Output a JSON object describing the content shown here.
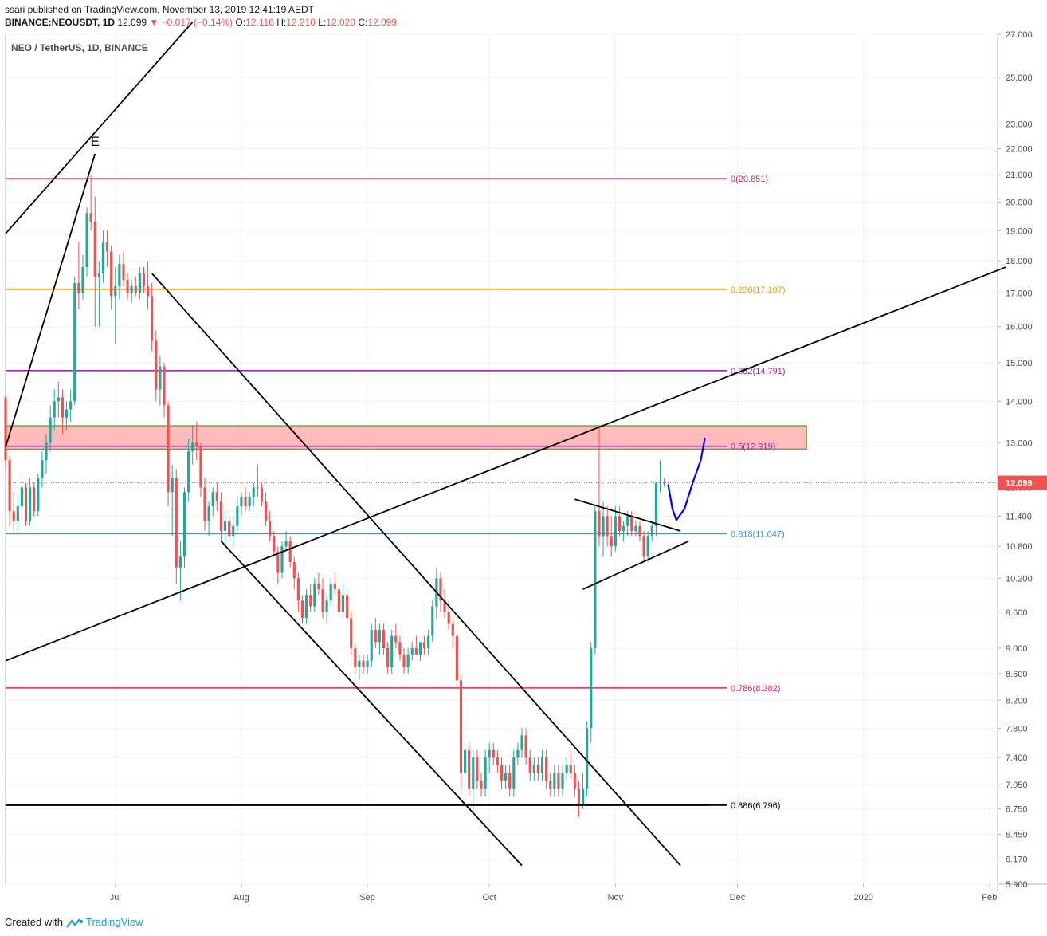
{
  "header": {
    "published": "ssari published on TradingView.com, November 13, 2019 12:41:19 AEDT",
    "symbol": "BINANCE:NEOUSDT, 1D",
    "last": "12.099",
    "change": "−0.017 (−0.14%)",
    "o_label": "O:",
    "o": "12.116",
    "h_label": "H:",
    "h": "12.210",
    "l_label": "L:",
    "l": "12.020",
    "c_label": "C:",
    "c": "12.099"
  },
  "pane_title": "NEO / TetherUS, 1D, BINANCE",
  "footer": {
    "created_with": "Created with",
    "brand": "TradingView"
  },
  "colors": {
    "up": "#26a69a",
    "down": "#ef5350",
    "grid": "#f0f3fa",
    "fib0": "#e91e63",
    "fib236": "#ff9800",
    "fib382": "#9c27b0",
    "fib5": "#9c27b0",
    "fib618": "#2196f3",
    "fib786": "#e91e63",
    "fib886": "#000000",
    "zone_fill": "#ffb3b3",
    "zone_border": "#6aa84f",
    "drawing": "#000000",
    "projection": "#0000ff",
    "price_badge": "#ef5350"
  },
  "chart_data": {
    "type": "candlestick",
    "symbol": "NEO / TetherUS",
    "interval": "1D",
    "exchange": "BINANCE",
    "y_scale": "log",
    "ylim": [
      5.9,
      27.0
    ],
    "x_range": [
      "2019-06-04",
      "2020-02-03"
    ],
    "x_ticks": [
      {
        "date": "2019-07-01",
        "label": "Jul"
      },
      {
        "date": "2019-08-01",
        "label": "Aug"
      },
      {
        "date": "2019-09-01",
        "label": "Sep"
      },
      {
        "date": "2019-10-01",
        "label": "Oct"
      },
      {
        "date": "2019-11-01",
        "label": "Nov"
      },
      {
        "date": "2019-12-01",
        "label": "Dec"
      },
      {
        "date": "2020-01-01",
        "label": "2020"
      },
      {
        "date": "2020-02-01",
        "label": "Feb"
      }
    ],
    "y_ticks": [
      "27.000",
      "25.000",
      "23.000",
      "22.000",
      "21.000",
      "20.000",
      "19.000",
      "18.000",
      "17.000",
      "16.000",
      "15.000",
      "14.000",
      "13.000",
      "12.000",
      "11.400",
      "10.800",
      "10.200",
      "9.600",
      "9.000",
      "8.600",
      "8.200",
      "7.800",
      "7.400",
      "7.050",
      "6.750",
      "6.450",
      "6.170",
      "5.900"
    ],
    "last_price": "12.099",
    "fib_levels": [
      {
        "ratio": "0",
        "price": "20.851",
        "label": "0(20.851)"
      },
      {
        "ratio": "0.236",
        "price": "17.107",
        "label": "0.236(17.107)"
      },
      {
        "ratio": "0.382",
        "price": "14.791",
        "label": "0.382(14.791)"
      },
      {
        "ratio": "0.5",
        "price": "12.919",
        "label": "0.5(12.919)"
      },
      {
        "ratio": "0.618",
        "price": "11.047",
        "label": "0.618(11.047)"
      },
      {
        "ratio": "0.786",
        "price": "8.382",
        "label": "0.786(8.382)"
      },
      {
        "ratio": "0.886",
        "price": "6.796",
        "label": "0.886(6.796)"
      }
    ],
    "resistance_zone": {
      "from": "2019-06-04",
      "to": "2019-12-18",
      "low": 12.85,
      "high": 13.4
    },
    "annotations": [
      {
        "text": "E",
        "date": "2019-06-26",
        "price": 21.8
      }
    ],
    "trendlines": [
      {
        "from": [
          "2019-06-04",
          18.9
        ],
        "to": [
          "2019-07-20",
          27.6
        ]
      },
      {
        "from": [
          "2019-06-04",
          8.8
        ],
        "to": [
          "2020-02-05",
          17.8
        ]
      },
      {
        "from": [
          "2019-07-10",
          17.6
        ],
        "to": [
          "2019-11-17",
          6.1
        ]
      },
      {
        "from": [
          "2019-07-27",
          10.9
        ],
        "to": [
          "2019-10-09",
          6.1
        ]
      },
      {
        "from": [
          "2019-06-04",
          12.9
        ],
        "to": [
          "2019-06-26",
          21.8
        ]
      },
      {
        "from": [
          "2019-06-04",
          6.796
        ],
        "to": [
          "2019-11-24",
          6.796
        ]
      },
      {
        "from": [
          "2019-10-22",
          11.75
        ],
        "to": [
          "2019-11-17",
          11.1
        ]
      },
      {
        "from": [
          "2019-10-24",
          10.0
        ],
        "to": [
          "2019-11-19",
          10.9
        ]
      }
    ],
    "projection": [
      [
        "2019-11-14",
        12.05
      ],
      [
        "2019-11-15",
        11.55
      ],
      [
        "2019-11-16",
        11.32
      ],
      [
        "2019-11-18",
        11.55
      ],
      [
        "2019-11-20",
        12.1
      ],
      [
        "2019-11-22",
        12.6
      ],
      [
        "2019-11-23",
        13.1
      ]
    ],
    "candles_columns": [
      "date",
      "open",
      "high",
      "low",
      "close"
    ],
    "candles": [
      [
        "2019-06-04",
        14.1,
        14.2,
        12.4,
        12.6
      ],
      [
        "2019-06-05",
        12.6,
        12.7,
        11.2,
        11.5
      ],
      [
        "2019-06-06",
        11.5,
        11.9,
        11.1,
        11.3
      ],
      [
        "2019-06-07",
        11.3,
        11.8,
        11.1,
        11.6
      ],
      [
        "2019-06-08",
        11.6,
        12.3,
        11.3,
        12.0
      ],
      [
        "2019-06-09",
        12.0,
        12.1,
        11.2,
        11.3
      ],
      [
        "2019-06-10",
        11.3,
        12.2,
        11.2,
        12.0
      ],
      [
        "2019-06-11",
        12.0,
        12.1,
        11.4,
        11.5
      ],
      [
        "2019-06-12",
        11.5,
        12.3,
        11.4,
        12.2
      ],
      [
        "2019-06-13",
        12.2,
        12.8,
        12.0,
        12.6
      ],
      [
        "2019-06-14",
        12.6,
        13.2,
        12.3,
        13.0
      ],
      [
        "2019-06-15",
        13.0,
        13.9,
        12.8,
        13.6
      ],
      [
        "2019-06-16",
        13.6,
        14.3,
        13.3,
        14.0
      ],
      [
        "2019-06-17",
        14.0,
        14.5,
        13.6,
        14.1
      ],
      [
        "2019-06-18",
        14.1,
        14.3,
        13.2,
        13.6
      ],
      [
        "2019-06-19",
        13.6,
        14.0,
        13.3,
        13.8
      ],
      [
        "2019-06-20",
        13.8,
        14.3,
        13.5,
        14.0
      ],
      [
        "2019-06-21",
        14.0,
        17.5,
        13.9,
        17.3
      ],
      [
        "2019-06-22",
        17.3,
        18.6,
        16.5,
        17.0
      ],
      [
        "2019-06-23",
        17.0,
        18.2,
        16.8,
        17.8
      ],
      [
        "2019-06-24",
        17.8,
        19.8,
        17.5,
        19.6
      ],
      [
        "2019-06-25",
        19.6,
        21.0,
        19.0,
        19.3
      ],
      [
        "2019-06-26",
        19.3,
        20.2,
        16.0,
        17.5
      ],
      [
        "2019-06-27",
        17.5,
        18.0,
        16.0,
        17.6
      ],
      [
        "2019-06-28",
        17.6,
        19.0,
        17.3,
        18.6
      ],
      [
        "2019-06-29",
        18.6,
        19.0,
        17.8,
        18.3
      ],
      [
        "2019-06-30",
        18.3,
        18.5,
        16.5,
        16.9
      ],
      [
        "2019-07-01",
        16.9,
        17.8,
        15.5,
        17.2
      ],
      [
        "2019-07-02",
        17.2,
        18.2,
        16.8,
        17.9
      ],
      [
        "2019-07-03",
        17.9,
        18.3,
        17.2,
        17.4
      ],
      [
        "2019-07-04",
        17.4,
        17.6,
        16.8,
        17.0
      ],
      [
        "2019-07-05",
        17.0,
        17.4,
        16.7,
        17.2
      ],
      [
        "2019-07-06",
        17.2,
        17.5,
        16.9,
        17.0
      ],
      [
        "2019-07-07",
        17.0,
        17.8,
        16.8,
        17.6
      ],
      [
        "2019-07-08",
        17.6,
        17.8,
        17.0,
        17.2
      ],
      [
        "2019-07-09",
        17.2,
        18.0,
        16.5,
        16.9
      ],
      [
        "2019-07-10",
        16.9,
        17.3,
        15.3,
        15.6
      ],
      [
        "2019-07-11",
        15.6,
        15.9,
        14.0,
        14.3
      ],
      [
        "2019-07-12",
        14.3,
        15.2,
        13.9,
        14.9
      ],
      [
        "2019-07-13",
        14.9,
        15.0,
        13.6,
        13.9
      ],
      [
        "2019-07-14",
        13.9,
        14.0,
        11.6,
        11.9
      ],
      [
        "2019-07-15",
        11.9,
        12.5,
        11.0,
        12.2
      ],
      [
        "2019-07-16",
        12.2,
        12.4,
        10.1,
        10.4
      ],
      [
        "2019-07-17",
        10.4,
        10.9,
        9.8,
        10.6
      ],
      [
        "2019-07-18",
        10.6,
        12.0,
        10.4,
        11.9
      ],
      [
        "2019-07-19",
        11.9,
        13.1,
        11.7,
        12.8
      ],
      [
        "2019-07-20",
        12.8,
        13.4,
        12.5,
        13.0
      ],
      [
        "2019-07-21",
        13.0,
        13.5,
        12.6,
        12.9
      ],
      [
        "2019-07-22",
        12.9,
        13.0,
        11.8,
        12.0
      ],
      [
        "2019-07-23",
        12.0,
        12.2,
        11.1,
        11.3
      ],
      [
        "2019-07-24",
        11.3,
        11.7,
        11.0,
        11.6
      ],
      [
        "2019-07-25",
        11.6,
        12.0,
        11.4,
        11.9
      ],
      [
        "2019-07-26",
        11.9,
        12.1,
        11.5,
        11.7
      ],
      [
        "2019-07-27",
        11.7,
        11.9,
        10.9,
        11.1
      ],
      [
        "2019-07-28",
        11.1,
        11.5,
        10.8,
        11.3
      ],
      [
        "2019-07-29",
        11.3,
        11.4,
        10.9,
        11.0
      ],
      [
        "2019-07-30",
        11.0,
        11.4,
        10.8,
        11.2
      ],
      [
        "2019-07-31",
        11.2,
        11.8,
        11.1,
        11.6
      ],
      [
        "2019-08-01",
        11.6,
        11.9,
        11.4,
        11.8
      ],
      [
        "2019-08-02",
        11.8,
        12.0,
        11.5,
        11.6
      ],
      [
        "2019-08-03",
        11.6,
        11.9,
        11.5,
        11.8
      ],
      [
        "2019-08-04",
        11.8,
        12.1,
        11.6,
        12.0
      ],
      [
        "2019-08-05",
        12.0,
        12.5,
        11.8,
        12.0
      ],
      [
        "2019-08-06",
        12.0,
        12.1,
        11.6,
        11.7
      ],
      [
        "2019-08-07",
        11.7,
        11.9,
        11.2,
        11.3
      ],
      [
        "2019-08-08",
        11.3,
        11.5,
        10.9,
        11.0
      ],
      [
        "2019-08-09",
        11.0,
        11.1,
        10.6,
        10.7
      ],
      [
        "2019-08-10",
        10.7,
        10.8,
        10.1,
        10.3
      ],
      [
        "2019-08-11",
        10.3,
        10.9,
        10.2,
        10.8
      ],
      [
        "2019-08-12",
        10.8,
        11.1,
        10.7,
        10.9
      ],
      [
        "2019-08-13",
        10.9,
        11.0,
        10.4,
        10.5
      ],
      [
        "2019-08-14",
        10.5,
        10.6,
        10.0,
        10.2
      ],
      [
        "2019-08-15",
        10.2,
        10.3,
        9.6,
        9.8
      ],
      [
        "2019-08-16",
        9.8,
        9.9,
        9.4,
        9.5
      ],
      [
        "2019-08-17",
        9.5,
        10.0,
        9.4,
        9.9
      ],
      [
        "2019-08-18",
        9.9,
        10.1,
        9.6,
        9.7
      ],
      [
        "2019-08-19",
        9.7,
        10.2,
        9.6,
        10.1
      ],
      [
        "2019-08-20",
        10.1,
        10.3,
        9.9,
        10.0
      ],
      [
        "2019-08-21",
        10.0,
        10.2,
        9.5,
        9.6
      ],
      [
        "2019-08-22",
        9.6,
        9.9,
        9.4,
        9.8
      ],
      [
        "2019-08-23",
        9.8,
        10.2,
        9.7,
        10.1
      ],
      [
        "2019-08-24",
        10.1,
        10.3,
        9.9,
        10.0
      ],
      [
        "2019-08-25",
        10.0,
        10.1,
        9.5,
        9.6
      ],
      [
        "2019-08-26",
        9.6,
        10.1,
        9.5,
        9.9
      ],
      [
        "2019-08-27",
        9.9,
        10.0,
        9.4,
        9.5
      ],
      [
        "2019-08-28",
        9.5,
        9.6,
        8.9,
        9.0
      ],
      [
        "2019-08-29",
        9.0,
        9.1,
        8.6,
        8.7
      ],
      [
        "2019-08-30",
        8.7,
        8.9,
        8.5,
        8.8
      ],
      [
        "2019-08-31",
        8.8,
        8.9,
        8.6,
        8.7
      ],
      [
        "2019-09-01",
        8.7,
        8.9,
        8.6,
        8.8
      ],
      [
        "2019-09-02",
        8.8,
        9.4,
        8.7,
        9.3
      ],
      [
        "2019-09-03",
        9.3,
        9.5,
        9.0,
        9.1
      ],
      [
        "2019-09-04",
        9.1,
        9.4,
        8.9,
        9.3
      ],
      [
        "2019-09-05",
        9.3,
        9.4,
        8.9,
        9.0
      ],
      [
        "2019-09-06",
        9.0,
        9.1,
        8.6,
        8.7
      ],
      [
        "2019-09-07",
        8.7,
        9.3,
        8.6,
        9.2
      ],
      [
        "2019-09-08",
        9.2,
        9.4,
        9.0,
        9.1
      ],
      [
        "2019-09-09",
        9.1,
        9.2,
        8.8,
        8.9
      ],
      [
        "2019-09-10",
        8.9,
        9.0,
        8.6,
        8.7
      ],
      [
        "2019-09-11",
        8.7,
        9.0,
        8.6,
        8.9
      ],
      [
        "2019-09-12",
        8.9,
        9.1,
        8.8,
        9.0
      ],
      [
        "2019-09-13",
        9.0,
        9.2,
        8.9,
        8.9
      ],
      [
        "2019-09-14",
        8.9,
        9.1,
        8.8,
        9.1
      ],
      [
        "2019-09-15",
        9.1,
        9.2,
        8.9,
        9.0
      ],
      [
        "2019-09-16",
        9.0,
        9.3,
        8.9,
        9.2
      ],
      [
        "2019-09-17",
        9.2,
        9.8,
        9.1,
        9.7
      ],
      [
        "2019-09-18",
        9.7,
        10.4,
        9.5,
        10.2
      ],
      [
        "2019-09-19",
        10.2,
        10.3,
        9.6,
        9.8
      ],
      [
        "2019-09-20",
        9.8,
        10.0,
        9.5,
        9.6
      ],
      [
        "2019-09-21",
        9.6,
        9.8,
        9.3,
        9.4
      ],
      [
        "2019-09-22",
        9.4,
        9.5,
        9.0,
        9.2
      ],
      [
        "2019-09-23",
        9.2,
        9.3,
        8.4,
        8.5
      ],
      [
        "2019-09-24",
        8.5,
        8.6,
        7.0,
        7.2
      ],
      [
        "2019-09-25",
        7.2,
        7.6,
        6.8,
        7.5
      ],
      [
        "2019-09-26",
        7.5,
        7.6,
        6.9,
        7.0
      ],
      [
        "2019-09-27",
        7.0,
        7.5,
        6.7,
        7.4
      ],
      [
        "2019-09-28",
        7.4,
        7.5,
        7.0,
        7.1
      ],
      [
        "2019-09-29",
        7.1,
        7.2,
        6.9,
        7.0
      ],
      [
        "2019-09-30",
        7.0,
        7.5,
        6.9,
        7.4
      ],
      [
        "2019-10-01",
        7.4,
        7.6,
        7.2,
        7.5
      ],
      [
        "2019-10-02",
        7.5,
        7.6,
        7.3,
        7.4
      ],
      [
        "2019-10-03",
        7.4,
        7.5,
        7.2,
        7.3
      ],
      [
        "2019-10-04",
        7.3,
        7.4,
        7.0,
        7.1
      ],
      [
        "2019-10-05",
        7.1,
        7.3,
        7.0,
        7.2
      ],
      [
        "2019-10-06",
        7.2,
        7.3,
        6.9,
        7.0
      ],
      [
        "2019-10-07",
        7.0,
        7.5,
        6.9,
        7.4
      ],
      [
        "2019-10-08",
        7.4,
        7.6,
        7.3,
        7.5
      ],
      [
        "2019-10-09",
        7.5,
        7.8,
        7.4,
        7.7
      ],
      [
        "2019-10-10",
        7.7,
        7.8,
        7.3,
        7.4
      ],
      [
        "2019-10-11",
        7.4,
        7.5,
        7.1,
        7.2
      ],
      [
        "2019-10-12",
        7.2,
        7.4,
        7.1,
        7.3
      ],
      [
        "2019-10-13",
        7.3,
        7.4,
        7.1,
        7.2
      ],
      [
        "2019-10-14",
        7.2,
        7.5,
        7.1,
        7.4
      ],
      [
        "2019-10-15",
        7.4,
        7.5,
        7.0,
        7.1
      ],
      [
        "2019-10-16",
        7.1,
        7.2,
        6.9,
        7.0
      ],
      [
        "2019-10-17",
        7.0,
        7.3,
        6.9,
        7.2
      ],
      [
        "2019-10-18",
        7.2,
        7.3,
        6.9,
        7.0
      ],
      [
        "2019-10-19",
        7.0,
        7.3,
        6.9,
        7.2
      ],
      [
        "2019-10-20",
        7.2,
        7.4,
        7.1,
        7.3
      ],
      [
        "2019-10-21",
        7.3,
        7.5,
        7.1,
        7.2
      ],
      [
        "2019-10-22",
        7.2,
        7.3,
        6.9,
        7.0
      ],
      [
        "2019-10-23",
        7.0,
        7.1,
        6.65,
        6.8
      ],
      [
        "2019-10-24",
        6.8,
        7.2,
        6.75,
        7.0
      ],
      [
        "2019-10-25",
        7.0,
        7.9,
        6.9,
        7.8
      ],
      [
        "2019-10-26",
        7.8,
        9.1,
        7.6,
        9.0
      ],
      [
        "2019-10-27",
        9.0,
        11.6,
        8.9,
        11.5
      ],
      [
        "2019-10-28",
        11.5,
        13.4,
        10.8,
        11.0
      ],
      [
        "2019-10-29",
        11.0,
        11.7,
        10.6,
        11.4
      ],
      [
        "2019-10-30",
        11.4,
        11.6,
        10.8,
        11.0
      ],
      [
        "2019-10-31",
        11.0,
        11.4,
        10.6,
        10.8
      ],
      [
        "2019-11-01",
        10.8,
        11.6,
        10.7,
        11.4
      ],
      [
        "2019-11-02",
        11.4,
        11.6,
        11.0,
        11.1
      ],
      [
        "2019-11-03",
        11.1,
        11.3,
        10.9,
        11.2
      ],
      [
        "2019-11-04",
        11.2,
        11.5,
        11.0,
        11.4
      ],
      [
        "2019-11-05",
        11.4,
        11.5,
        11.0,
        11.1
      ],
      [
        "2019-11-06",
        11.1,
        11.3,
        11.0,
        11.2
      ],
      [
        "2019-11-07",
        11.2,
        11.3,
        10.9,
        11.0
      ],
      [
        "2019-11-08",
        11.0,
        11.1,
        10.5,
        10.6
      ],
      [
        "2019-11-09",
        10.6,
        11.1,
        10.5,
        11.0
      ],
      [
        "2019-11-10",
        11.0,
        11.3,
        10.9,
        11.2
      ],
      [
        "2019-11-11",
        11.2,
        12.1,
        11.0,
        12.1
      ],
      [
        "2019-11-12",
        12.1,
        12.6,
        11.9,
        12.116
      ],
      [
        "2019-11-13",
        12.116,
        12.21,
        12.02,
        12.099
      ]
    ]
  }
}
